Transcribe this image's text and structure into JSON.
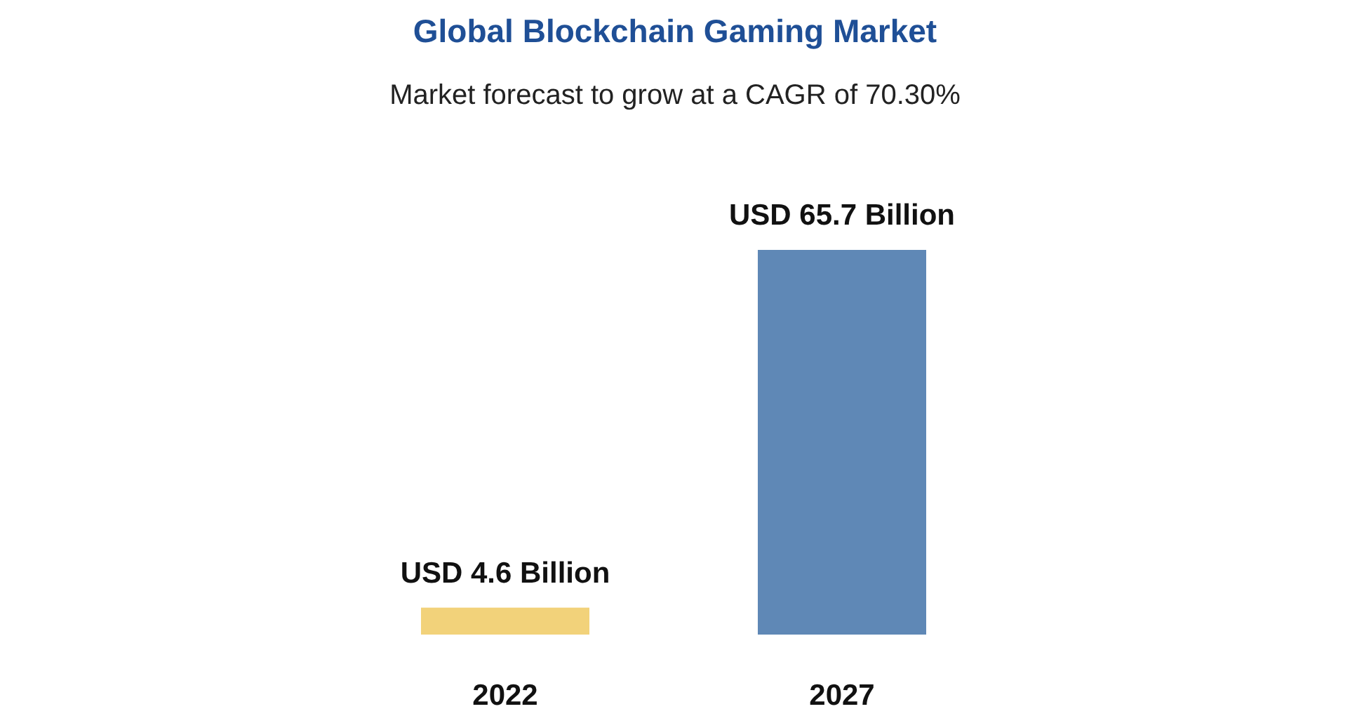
{
  "chart_data": {
    "type": "bar",
    "title": "Global Blockchain Gaming Market",
    "subtitle": "Market forecast to grow at a CAGR of 70.30%",
    "categories": [
      "2022",
      "2027"
    ],
    "values": [
      4.6,
      65.7
    ],
    "colors": [
      "#f2d27a",
      "#5f88b6"
    ],
    "value_labels": [
      "USD 4.6 Billion",
      "USD 65.7 Billion"
    ],
    "grid": false
  }
}
